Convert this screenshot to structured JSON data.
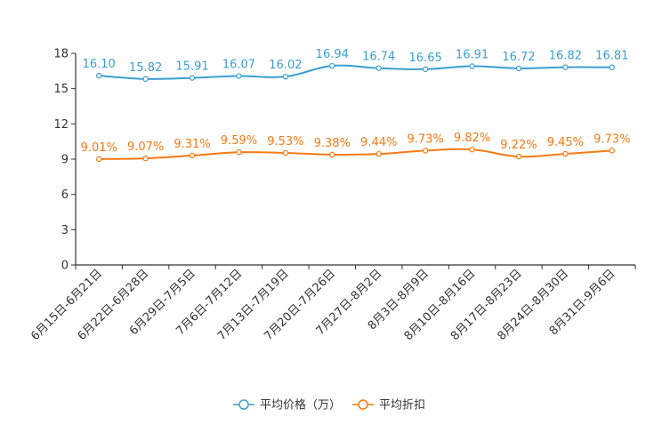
{
  "chart_data": {
    "type": "line",
    "title": "",
    "xlabel": "",
    "ylabel": "",
    "ylim": [
      0,
      18
    ],
    "yticks": [
      0,
      3,
      6,
      9,
      12,
      15,
      18
    ],
    "categories": [
      "6月15日-6月21日",
      "6月22日-6月28日",
      "6月29日-7月5日",
      "7月6日-7月12日",
      "7月13日-7月19日",
      "7月20日-7月26日",
      "7月27日-8月2日",
      "8月3日-8月9日",
      "8月10日-8月16日",
      "8月17日-8月23日",
      "8月24日-8月30日",
      "8月31日-9月6日"
    ],
    "series": [
      {
        "name": "平均价格（万）",
        "color": "#3a9fd0",
        "values": [
          16.1,
          15.82,
          15.91,
          16.07,
          16.02,
          16.94,
          16.74,
          16.65,
          16.91,
          16.72,
          16.82,
          16.81
        ],
        "labels": [
          "16.10",
          "15.82",
          "15.91",
          "16.07",
          "16.02",
          "16.94",
          "16.74",
          "16.65",
          "16.91",
          "16.72",
          "16.82",
          "16.81"
        ]
      },
      {
        "name": "平均折扣",
        "color": "#f47a13",
        "values": [
          9.01,
          9.07,
          9.31,
          9.59,
          9.53,
          9.38,
          9.44,
          9.73,
          9.82,
          9.22,
          9.45,
          9.73
        ],
        "labels": [
          "9.01%",
          "9.07%",
          "9.31%",
          "9.59%",
          "9.53%",
          "9.38%",
          "9.44%",
          "9.73%",
          "9.82%",
          "9.22%",
          "9.45%",
          "9.73%"
        ]
      }
    ],
    "legend_position": "bottom-center",
    "grid": false
  }
}
